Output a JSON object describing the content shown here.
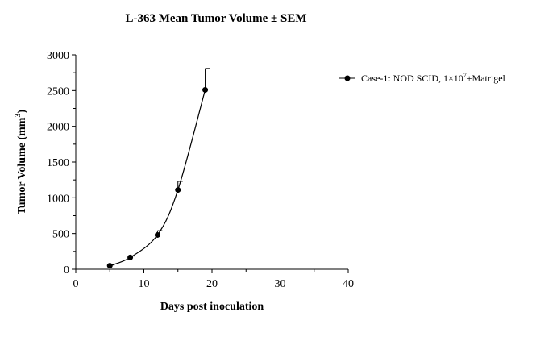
{
  "chart_data": {
    "type": "line",
    "title": "L-363 Mean Tumor Volume ± SEM",
    "xlabel": "Days post inoculation",
    "ylabel": "Tumor Volume (mm",
    "ylabel_superscript": "3",
    "ylabel_suffix": ")",
    "xlim": [
      0,
      40
    ],
    "ylim": [
      0,
      3000
    ],
    "x_ticks": [
      0,
      10,
      20,
      30,
      40
    ],
    "y_ticks": [
      0,
      500,
      1000,
      1500,
      2000,
      2500,
      3000
    ],
    "x_tick_labels": [
      "0",
      "10",
      "20",
      "30",
      "40"
    ],
    "y_tick_labels": [
      "0",
      "500",
      "1000",
      "1500",
      "2000",
      "2500",
      "3000"
    ],
    "grid": false,
    "legend_position": "right",
    "series": [
      {
        "name": "Case-1: NOD SCID, 1×10",
        "name_superscript": "7",
        "name_suffix": "+Matrigel",
        "x": [
          5,
          8,
          12,
          15,
          19
        ],
        "y": [
          50,
          165,
          480,
          1110,
          2510
        ],
        "sem": [
          10,
          20,
          60,
          120,
          300
        ],
        "color": "#000000",
        "marker": "circle"
      }
    ]
  }
}
